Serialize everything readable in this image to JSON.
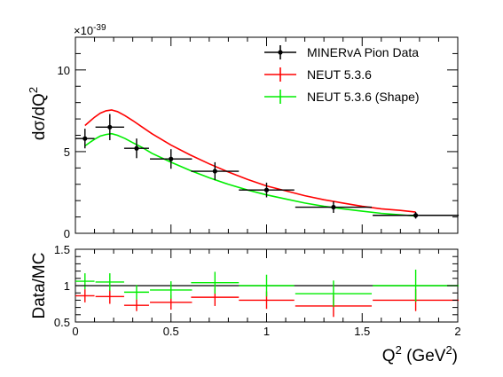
{
  "chart_data": [
    {
      "type": "scatter",
      "panel": "main",
      "ylabel": "dσ/dQ",
      "ylabel_sup": "2",
      "y_multiplier": "×10",
      "y_multiplier_exp": "-39",
      "xlim": [
        0,
        2
      ],
      "ylim": [
        0,
        12
      ],
      "y_ticks": [
        0,
        5,
        10
      ],
      "y_tick_labels": [
        "0",
        "5",
        "10"
      ],
      "legend_position": "top-right",
      "series": [
        {
          "name": "MINERvA Pion Data",
          "color": "#000000",
          "kind": "data-points",
          "points": [
            {
              "x": 0.05,
              "xerr": 0.05,
              "y": 5.8,
              "yerr": 0.6
            },
            {
              "x": 0.18,
              "xerr": 0.075,
              "y": 6.5,
              "yerr": 0.8
            },
            {
              "x": 0.32,
              "xerr": 0.065,
              "y": 5.2,
              "yerr": 0.6
            },
            {
              "x": 0.5,
              "xerr": 0.11,
              "y": 4.55,
              "yerr": 0.6
            },
            {
              "x": 0.73,
              "xerr": 0.125,
              "y": 3.8,
              "yerr": 0.55
            },
            {
              "x": 1.0,
              "xerr": 0.145,
              "y": 2.65,
              "yerr": 0.45
            },
            {
              "x": 1.35,
              "xerr": 0.2,
              "y": 1.6,
              "yerr": 0.35
            },
            {
              "x": 1.78,
              "xerr": 0.225,
              "y": 1.1,
              "yerr": 0.2
            }
          ]
        },
        {
          "name": "NEUT 5.3.6",
          "color": "#ff0000",
          "kind": "curve",
          "x": [
            0.05,
            0.08,
            0.1,
            0.13,
            0.16,
            0.19,
            0.22,
            0.26,
            0.3,
            0.35,
            0.4,
            0.5,
            0.6,
            0.7,
            0.8,
            0.9,
            1.0,
            1.1,
            1.2,
            1.3,
            1.4,
            1.5,
            1.6,
            1.7,
            1.78
          ],
          "y": [
            6.6,
            6.9,
            7.1,
            7.35,
            7.5,
            7.55,
            7.45,
            7.2,
            6.9,
            6.5,
            6.1,
            5.4,
            4.8,
            4.25,
            3.75,
            3.3,
            2.9,
            2.6,
            2.3,
            2.05,
            1.85,
            1.65,
            1.5,
            1.4,
            1.3
          ]
        },
        {
          "name": "NEUT 5.3.6 (Shape)",
          "color": "#00ee00",
          "kind": "curve",
          "x": [
            0.05,
            0.08,
            0.1,
            0.13,
            0.16,
            0.19,
            0.22,
            0.26,
            0.3,
            0.35,
            0.4,
            0.5,
            0.6,
            0.7,
            0.8,
            0.9,
            1.0,
            1.1,
            1.2,
            1.3,
            1.4,
            1.5,
            1.6,
            1.7,
            1.78
          ],
          "y": [
            5.35,
            5.6,
            5.75,
            5.95,
            6.05,
            6.1,
            6.0,
            5.8,
            5.55,
            5.25,
            4.9,
            4.35,
            3.85,
            3.4,
            3.0,
            2.65,
            2.35,
            2.1,
            1.85,
            1.65,
            1.5,
            1.35,
            1.22,
            1.13,
            1.06
          ]
        }
      ]
    },
    {
      "type": "scatter",
      "panel": "ratio",
      "ylabel": "Data/MC",
      "xlabel": "Q",
      "xlabel_sup": "2",
      "xlabel_unit_open": " (GeV",
      "xlabel_unit_sup": "2",
      "xlabel_unit_close": ")",
      "xlim": [
        0,
        2
      ],
      "ylim": [
        0.5,
        1.5
      ],
      "x_ticks": [
        0,
        0.5,
        1,
        1.5,
        2
      ],
      "x_tick_labels": [
        "0",
        "0.5",
        "1",
        "1.5",
        "2"
      ],
      "y_ticks": [
        0.5,
        1,
        1.5
      ],
      "y_tick_labels": [
        "0.5",
        "1",
        "1.5"
      ],
      "reference_line": 1,
      "series": [
        {
          "name": "NEUT 5.3.6",
          "color": "#ff0000",
          "points": [
            {
              "x": 0.05,
              "xerr": 0.05,
              "y": 0.86,
              "yerr": 0.09
            },
            {
              "x": 0.18,
              "xerr": 0.075,
              "y": 0.85,
              "yerr": 0.1
            },
            {
              "x": 0.32,
              "xerr": 0.065,
              "y": 0.73,
              "yerr": 0.08
            },
            {
              "x": 0.5,
              "xerr": 0.11,
              "y": 0.77,
              "yerr": 0.1
            },
            {
              "x": 0.73,
              "xerr": 0.125,
              "y": 0.84,
              "yerr": 0.12
            },
            {
              "x": 1.0,
              "xerr": 0.145,
              "y": 0.8,
              "yerr": 0.12
            },
            {
              "x": 1.35,
              "xerr": 0.2,
              "y": 0.72,
              "yerr": 0.15
            },
            {
              "x": 1.78,
              "xerr": 0.225,
              "y": 0.8,
              "yerr": 0.15
            }
          ]
        },
        {
          "name": "NEUT 5.3.6 (Shape)",
          "color": "#00ee00",
          "points": [
            {
              "x": 0.05,
              "xerr": 0.05,
              "y": 1.06,
              "yerr": 0.11
            },
            {
              "x": 0.18,
              "xerr": 0.075,
              "y": 1.05,
              "yerr": 0.12
            },
            {
              "x": 0.32,
              "xerr": 0.065,
              "y": 0.91,
              "yerr": 0.1
            },
            {
              "x": 0.5,
              "xerr": 0.11,
              "y": 0.94,
              "yerr": 0.12
            },
            {
              "x": 0.73,
              "xerr": 0.125,
              "y": 1.04,
              "yerr": 0.15
            },
            {
              "x": 1.0,
              "xerr": 0.145,
              "y": 1.0,
              "yerr": 0.15
            },
            {
              "x": 1.35,
              "xerr": 0.2,
              "y": 0.89,
              "yerr": 0.18
            },
            {
              "x": 1.78,
              "xerr": 0.225,
              "y": 1.0,
              "yerr": 0.22
            }
          ]
        }
      ]
    }
  ]
}
